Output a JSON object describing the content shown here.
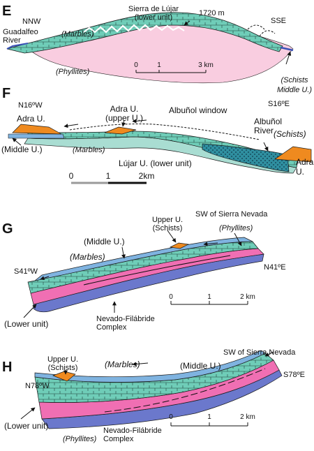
{
  "colors": {
    "marbles": "#6fcdb8",
    "marbles_light": "#a9ddd2",
    "marbles_dark": "#2f8fa0",
    "phyllites": "#f06fb3",
    "phyllites_pale": "#f9cde0",
    "schists_orange": "#ef8a1f",
    "schists_blue": "#7fb3e0",
    "basement": "#6b78cc",
    "outline": "#1a1a1a"
  },
  "panels": [
    {
      "id": "E",
      "letter": "E",
      "labels": {
        "nnw": "NNW",
        "river": "Guadalfeo\nRiver",
        "marbles": "(Marbles)",
        "phyllites": "(Phyllites)",
        "sierra": "Sierra de Lújar\n(lower unit)",
        "elev": "1720 m",
        "sse": "SSE",
        "schists": "(Schists\nMiddle U.)"
      },
      "scale": {
        "ticks": [
          "0",
          "1",
          "3 km"
        ]
      }
    },
    {
      "id": "F",
      "letter": "F",
      "labels": {
        "n16w": "N16ºW",
        "adra_left": "Adra U.",
        "adra_upper": "Adra U.\n(upper U.)",
        "window": "Albuñol window",
        "s16e": "S16ºE",
        "albunol_river": "Albuñol\nRiver",
        "schists": "(Schists)",
        "middle": "(Middle U.)",
        "marbles": "(Marbles)",
        "lujar": "Lújar U. (lower unit)",
        "adra_right": "Adra\nU."
      },
      "scale": {
        "ticks": [
          "0",
          "1",
          "2km"
        ]
      }
    },
    {
      "id": "G",
      "letter": "G",
      "labels": {
        "upper": "Upper U.\n(Schists)",
        "sw_sierra": "SW of Sierra Nevada",
        "middle": "(Middle U.)",
        "phyllites": "(Phyllites)",
        "marbles": "(Marbles)",
        "s41w": "S41ºW",
        "n41e": "N41ºE",
        "lower": "(Lower unit)",
        "nevado": "Nevado-Filábride\nComplex"
      },
      "scale": {
        "ticks": [
          "0",
          "1",
          "2 km"
        ]
      }
    },
    {
      "id": "H",
      "letter": "H",
      "labels": {
        "sw_sierra": "SW of Sierra Nevada",
        "upper": "Upper U.\n(Schists)",
        "marbles": "(Marbles)",
        "middle": "(Middle U.)",
        "n78w": "N78ºW",
        "s78e": "S78ºE",
        "lower": "(Lower unit)",
        "phyllites": "(Phyllites)",
        "nevado": "Nevado-Filábride\nComplex"
      },
      "scale": {
        "ticks": [
          "0",
          "1",
          "2 km"
        ]
      }
    }
  ]
}
